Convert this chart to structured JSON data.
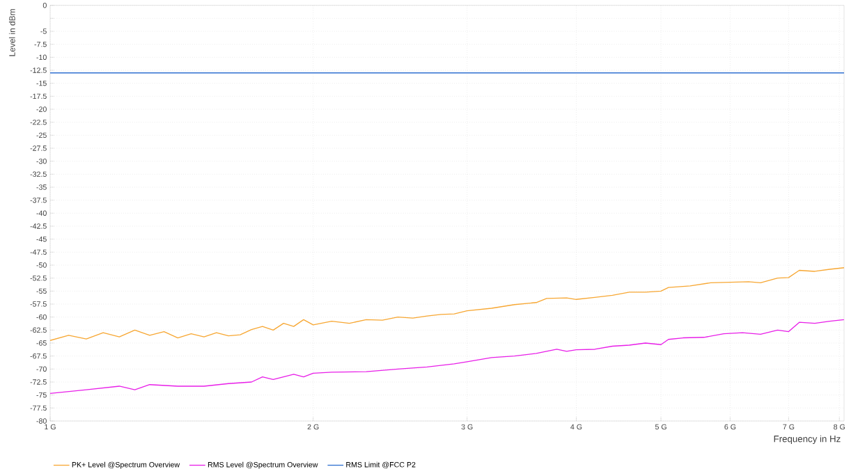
{
  "chart_data": {
    "type": "line",
    "xlabel": "Frequency in Hz",
    "ylabel": "Level in dBm",
    "log": "x",
    "grid": true,
    "legend": "bottom left",
    "marker": "none",
    "line_style": "solid",
    "xlim": [
      1,
      8.1
    ],
    "xticks": [
      {
        "value": 1,
        "label": "1 G"
      },
      {
        "value": 2,
        "label": "2 G"
      },
      {
        "value": 3,
        "label": "3 G"
      },
      {
        "value": 4,
        "label": "4 G"
      },
      {
        "value": 5,
        "label": "5 G"
      },
      {
        "value": 6,
        "label": "6 G"
      },
      {
        "value": 7,
        "label": "7 G"
      },
      {
        "value": 8,
        "label": "8 G"
      }
    ],
    "ylim": [
      -80,
      0
    ],
    "yticks": [
      0,
      {
        "value": -2.5,
        "label": null
      },
      -5,
      -7.5,
      -10,
      -12.5,
      -15,
      -17.5,
      -20,
      -22.5,
      -25,
      -27.5,
      -30,
      -32.5,
      -35,
      -37.5,
      -40,
      -42.5,
      -45,
      -47.5,
      -50,
      -52.5,
      -55,
      -57.5,
      -60,
      -62.5,
      -65,
      -67.5,
      -70,
      -72.5,
      -75,
      -77.5,
      -80
    ],
    "series": [
      {
        "name": "PK+ Level @Spectrum Overview",
        "color": "#f7a733",
        "x": [
          1.0,
          1.05,
          1.1,
          1.15,
          1.2,
          1.25,
          1.3,
          1.35,
          1.4,
          1.45,
          1.5,
          1.55,
          1.6,
          1.65,
          1.7,
          1.75,
          1.8,
          1.85,
          1.9,
          1.95,
          2.0,
          2.1,
          2.2,
          2.3,
          2.4,
          2.5,
          2.6,
          2.7,
          2.8,
          2.9,
          3.0,
          3.2,
          3.4,
          3.6,
          3.7,
          3.9,
          4.0,
          4.2,
          4.4,
          4.6,
          4.8,
          5.0,
          5.1,
          5.4,
          5.7,
          6.0,
          6.3,
          6.5,
          6.8,
          7.0,
          7.2,
          7.5,
          7.8,
          8.1
        ],
        "values": [
          -64.5,
          -63.5,
          -64.2,
          -63.0,
          -63.8,
          -62.5,
          -63.5,
          -62.8,
          -64.0,
          -63.2,
          -63.8,
          -63.0,
          -63.6,
          -63.4,
          -62.4,
          -61.8,
          -62.5,
          -61.2,
          -61.8,
          -60.5,
          -61.5,
          -60.8,
          -61.2,
          -60.5,
          -60.6,
          -60.0,
          -60.2,
          -59.8,
          -59.5,
          -59.4,
          -58.8,
          -58.3,
          -57.6,
          -57.2,
          -56.4,
          -56.3,
          -56.6,
          -56.2,
          -55.8,
          -55.2,
          -55.2,
          -55.0,
          -54.3,
          -54.0,
          -53.4,
          -53.3,
          -53.2,
          -53.4,
          -52.5,
          -52.4,
          -51.0,
          -51.2,
          -50.8,
          -50.5
        ]
      },
      {
        "name": "RMS Level @Spectrum Overview",
        "color": "#e81ee8",
        "x": [
          1.0,
          1.1,
          1.2,
          1.25,
          1.3,
          1.4,
          1.5,
          1.6,
          1.7,
          1.75,
          1.8,
          1.9,
          1.95,
          2.0,
          2.1,
          2.3,
          2.5,
          2.7,
          2.9,
          3.0,
          3.2,
          3.4,
          3.6,
          3.8,
          3.9,
          4.0,
          4.2,
          4.4,
          4.6,
          4.8,
          5.0,
          5.1,
          5.3,
          5.6,
          5.9,
          6.2,
          6.5,
          6.8,
          7.0,
          7.2,
          7.5,
          7.8,
          8.1
        ],
        "values": [
          -74.7,
          -74.0,
          -73.3,
          -74.0,
          -73.0,
          -73.3,
          -73.3,
          -72.8,
          -72.5,
          -71.5,
          -72.0,
          -71.0,
          -71.5,
          -70.8,
          -70.6,
          -70.5,
          -70.0,
          -69.6,
          -69.0,
          -68.6,
          -67.8,
          -67.5,
          -67.0,
          -66.2,
          -66.6,
          -66.3,
          -66.2,
          -65.6,
          -65.4,
          -65.0,
          -65.3,
          -64.3,
          -64.0,
          -63.9,
          -63.2,
          -63.0,
          -63.3,
          -62.5,
          -62.8,
          -61.0,
          -61.2,
          -60.8,
          -60.5
        ]
      },
      {
        "name": "RMS Limit @FCC P2",
        "color": "#2f6fd0",
        "x": [
          1.0,
          8.1
        ],
        "values": [
          -13,
          -13
        ]
      }
    ]
  }
}
